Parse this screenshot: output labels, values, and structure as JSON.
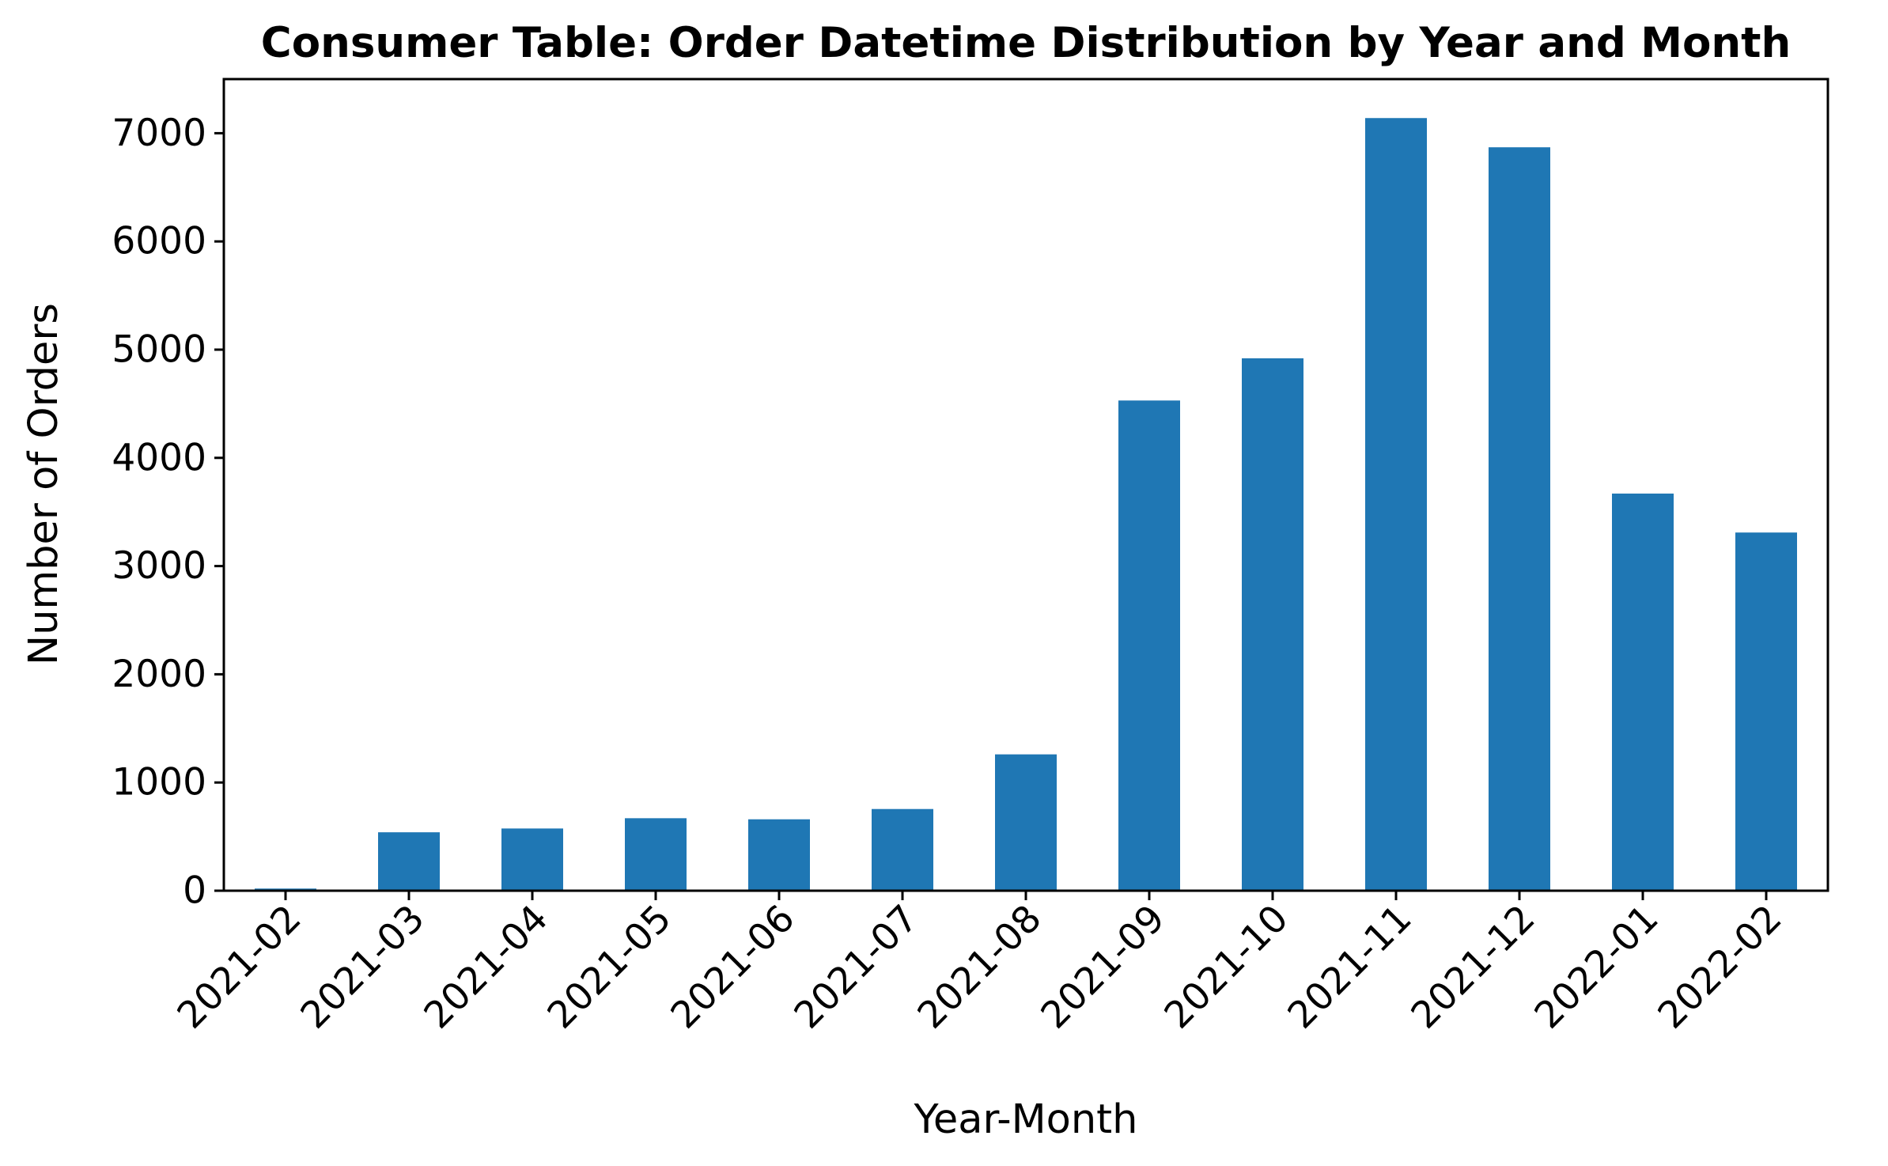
{
  "chart_data": {
    "type": "bar",
    "title": "Consumer Table: Order Datetime Distribution by Year and Month",
    "xlabel": "Year-Month",
    "ylabel": "Number of Orders",
    "categories": [
      "2021-02",
      "2021-03",
      "2021-04",
      "2021-05",
      "2021-06",
      "2021-07",
      "2021-08",
      "2021-09",
      "2021-10",
      "2021-11",
      "2021-12",
      "2022-01",
      "2022-02"
    ],
    "values": [
      20,
      540,
      575,
      670,
      660,
      755,
      1260,
      4530,
      4920,
      7140,
      6870,
      3670,
      3310
    ],
    "yticks": [
      0,
      1000,
      2000,
      3000,
      4000,
      5000,
      6000,
      7000
    ],
    "ylim": [
      0,
      7500
    ],
    "grid": false,
    "legend": "none",
    "bar_color": "#1f77b4"
  }
}
